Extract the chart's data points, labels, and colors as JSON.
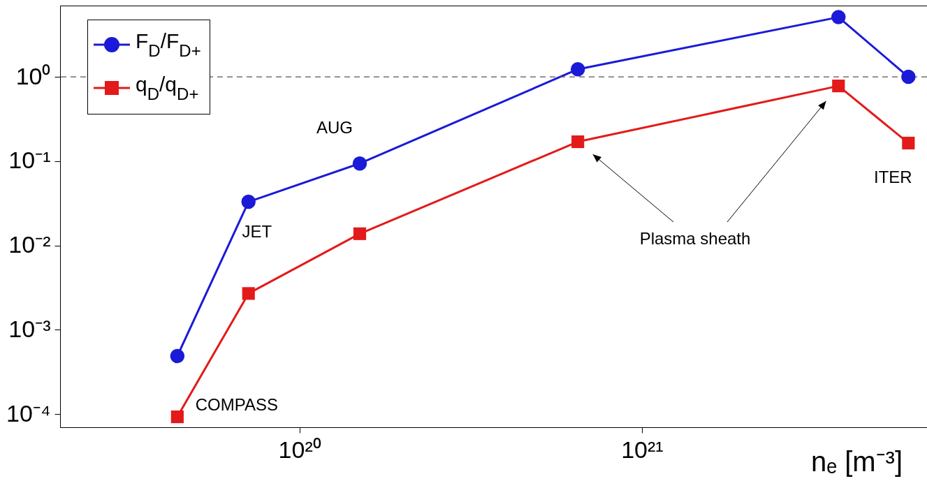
{
  "chart_data": {
    "type": "line",
    "xlabel": "nₑ [m⁻³]",
    "log": "xy",
    "grid": false,
    "legend": "top left",
    "x": [
      4.4e+19,
      7.1e+19,
      1.5e+20,
      6.5e+20,
      3.75e+21,
      6e+21
    ],
    "xlim": [
      2e+19,
      6.8e+21
    ],
    "ylim": [
      7e-05,
      7
    ],
    "xticks": [
      {
        "value": 1e+20,
        "label": "10²⁰"
      },
      {
        "value": 1e+21,
        "label": "10²¹"
      }
    ],
    "yticks": [
      {
        "value": 0.0001,
        "label": "10⁻⁴"
      },
      {
        "value": 0.001,
        "label": "10⁻³"
      },
      {
        "value": 0.01,
        "label": "10⁻²"
      },
      {
        "value": 0.1,
        "label": "10⁻¹"
      },
      {
        "value": 1,
        "label": "10⁰"
      }
    ],
    "series": [
      {
        "name": "F$_{D}$/F$_{D+}$",
        "color": "#1a1ad8",
        "marker": "circle",
        "values": [
          0.00049,
          0.033,
          0.094,
          1.23,
          5.1,
          1.0
        ]
      },
      {
        "name": "q$_{D}$/q$_{D+}$",
        "color": "#e31a1a",
        "marker": "square",
        "values": [
          9.3e-05,
          0.0027,
          0.0138,
          0.17,
          0.78,
          0.164
        ]
      }
    ],
    "ref_lines": [
      {
        "axis": "y",
        "value": 1,
        "color": "#555555",
        "line_style": "dashed"
      }
    ],
    "annotations": [
      {
        "text": "COMPASS",
        "x": 4.4e+19,
        "y": 9.3e-05
      },
      {
        "text": "JET",
        "x": 7.1e+19,
        "y": 0.033
      },
      {
        "text": "AUG",
        "x": 1.5e+20,
        "y": 0.094
      },
      {
        "text": "ITER",
        "x": 6e+21,
        "y": 0.164
      },
      "Plasma sheath"
    ]
  }
}
